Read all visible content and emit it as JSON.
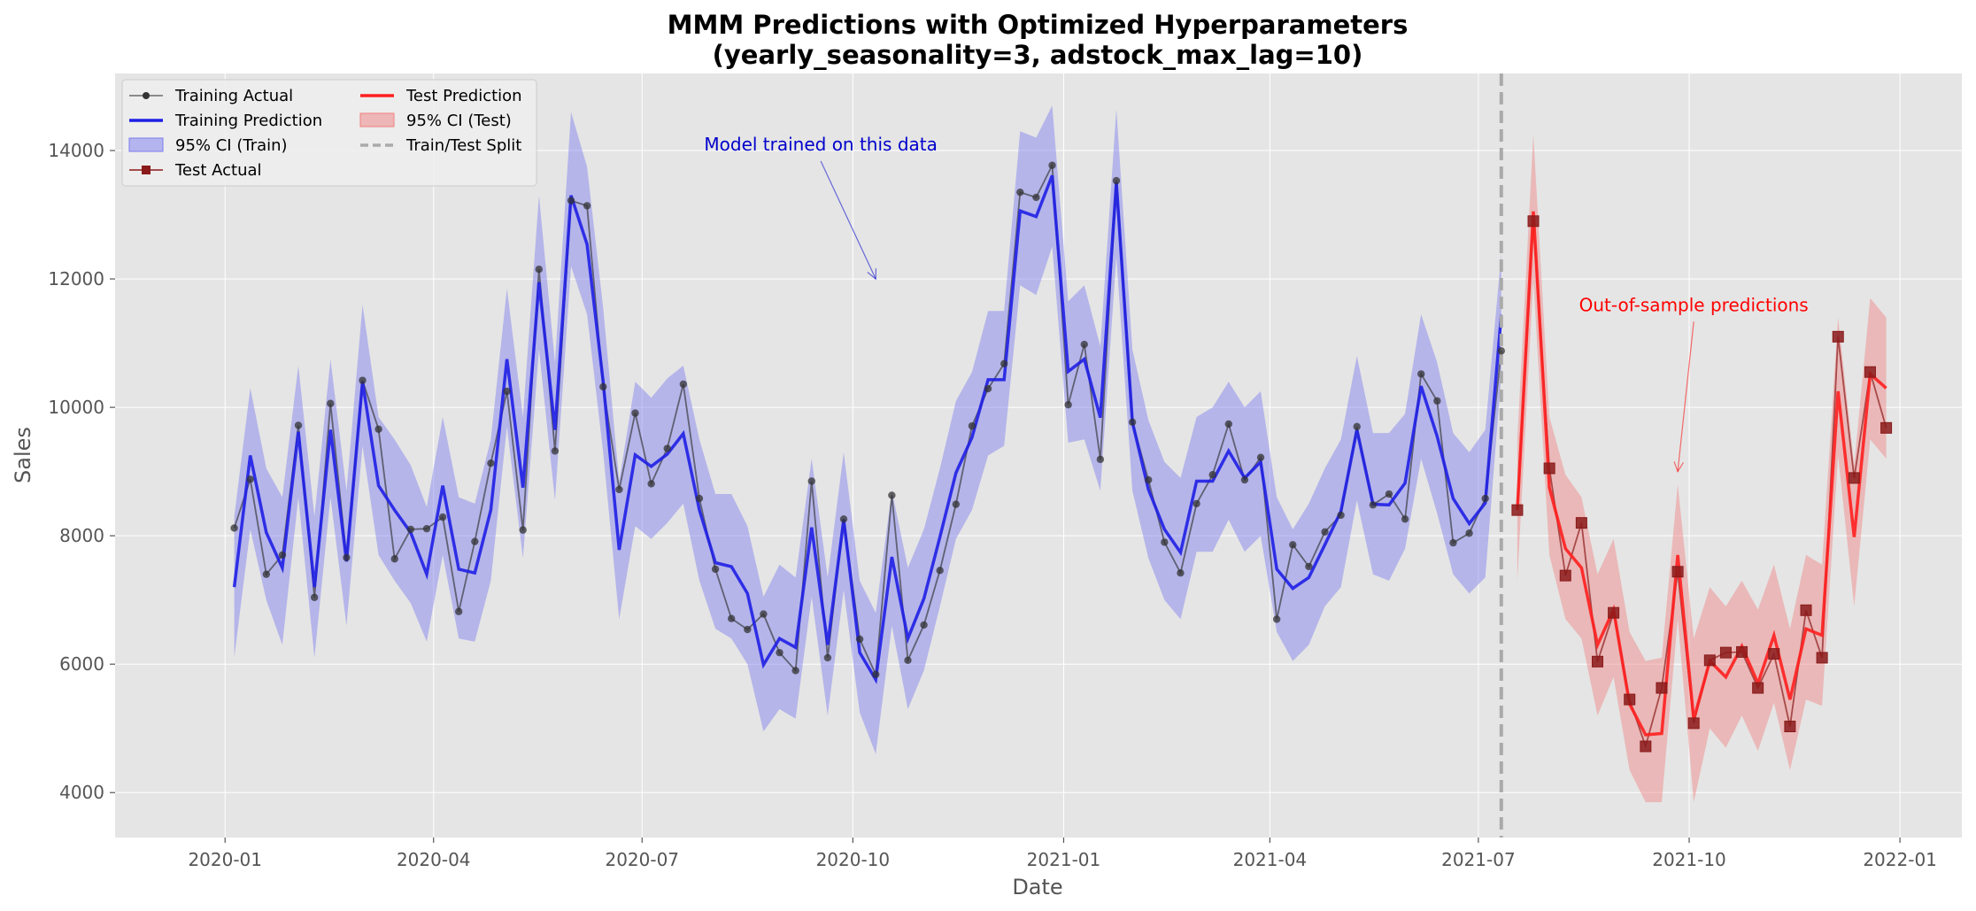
{
  "chart_data": {
    "type": "line",
    "title": "MMM Predictions with Optimized Hyperparameters",
    "subtitle": "(yearly_seasonality=3, adstock_max_lag=10)",
    "xlabel": "Date",
    "ylabel": "Sales",
    "ylim": [
      3300,
      15200
    ],
    "xlim": [
      "2019-11-14",
      "2022-01-28"
    ],
    "grid": true,
    "legend_placement": "top-left",
    "x_ticks": [
      "2020-01",
      "2020-04",
      "2020-07",
      "2020-10",
      "2021-01",
      "2021-04",
      "2021-07",
      "2021-10",
      "2022-01"
    ],
    "y_ticks": [
      4000,
      6000,
      8000,
      10000,
      12000,
      14000
    ],
    "split_date": "2021-07-11",
    "colors": {
      "train_actual": "#333333",
      "train_pred": "#1f1fe6",
      "train_ci": "#7b7bf0",
      "test_actual": "#8b1a1a",
      "test_pred": "#ff1f1f",
      "test_ci": "#f08080",
      "split": "#aaaaaa",
      "plot_bg": "#e5e5e5",
      "grid": "#ffffff"
    },
    "legend": [
      {
        "key": "train_actual",
        "label": "Training Actual"
      },
      {
        "key": "train_pred",
        "label": "Training Prediction"
      },
      {
        "key": "train_ci",
        "label": "95% CI (Train)"
      },
      {
        "key": "test_actual",
        "label": "Test Actual"
      },
      {
        "key": "test_pred",
        "label": "Test Prediction"
      },
      {
        "key": "test_ci",
        "label": "95% CI (Test)"
      },
      {
        "key": "split",
        "label": "Train/Test Split"
      }
    ],
    "annotations": [
      {
        "text": "Model trained on this data",
        "text_at": [
          "2020-09-17",
          14000
        ],
        "arrow_to": [
          "2020-10-11",
          12000
        ],
        "color": "#0000cc"
      },
      {
        "text": "Out-of-sample predictions",
        "text_at": [
          "2021-10-03",
          11500
        ],
        "arrow_to": [
          "2021-09-26",
          9000
        ],
        "color": "#ff0000"
      }
    ],
    "train": {
      "dates": [
        "2020-01-05",
        "2020-01-12",
        "2020-01-19",
        "2020-01-26",
        "2020-02-02",
        "2020-02-09",
        "2020-02-16",
        "2020-02-23",
        "2020-03-01",
        "2020-03-08",
        "2020-03-15",
        "2020-03-22",
        "2020-03-29",
        "2020-04-05",
        "2020-04-12",
        "2020-04-19",
        "2020-04-26",
        "2020-05-03",
        "2020-05-10",
        "2020-05-17",
        "2020-05-24",
        "2020-05-31",
        "2020-06-07",
        "2020-06-14",
        "2020-06-21",
        "2020-06-28",
        "2020-07-05",
        "2020-07-12",
        "2020-07-19",
        "2020-07-26",
        "2020-08-02",
        "2020-08-09",
        "2020-08-16",
        "2020-08-23",
        "2020-08-30",
        "2020-09-06",
        "2020-09-13",
        "2020-09-20",
        "2020-09-27",
        "2020-10-04",
        "2020-10-11",
        "2020-10-18",
        "2020-10-25",
        "2020-11-01",
        "2020-11-08",
        "2020-11-15",
        "2020-11-22",
        "2020-11-29",
        "2020-12-06",
        "2020-12-13",
        "2020-12-20",
        "2020-12-27",
        "2021-01-03",
        "2021-01-10",
        "2021-01-17",
        "2021-01-24",
        "2021-01-31",
        "2021-02-07",
        "2021-02-14",
        "2021-02-21",
        "2021-02-28",
        "2021-03-07",
        "2021-03-14",
        "2021-03-21",
        "2021-03-28",
        "2021-04-04",
        "2021-04-11",
        "2021-04-18",
        "2021-04-25",
        "2021-05-02",
        "2021-05-09",
        "2021-05-16",
        "2021-05-23",
        "2021-05-30",
        "2021-06-06",
        "2021-06-13",
        "2021-06-20",
        "2021-06-27",
        "2021-07-04",
        "2021-07-11"
      ],
      "actual": [
        8120,
        8880,
        7400,
        7700,
        9720,
        7040,
        10060,
        7660,
        10420,
        9660,
        7640,
        8100,
        8110,
        8290,
        6820,
        7910,
        9130,
        10250,
        8090,
        12150,
        9320,
        13220,
        13140,
        10320,
        8720,
        9910,
        8810,
        9360,
        10360,
        8580,
        7480,
        6710,
        6540,
        6780,
        6180,
        5900,
        8850,
        6100,
        8260,
        6390,
        5840,
        8630,
        6060,
        6610,
        7460,
        8490,
        9710,
        10290,
        10680,
        13350,
        13270,
        13770,
        10040,
        10980,
        9190,
        13530,
        9770,
        8870,
        7900,
        7420,
        8500,
        8950,
        9740,
        8870,
        9220,
        6700,
        7860,
        7520,
        8060,
        8320,
        9700,
        8480,
        8650,
        8260,
        10520,
        10100,
        7890,
        8040,
        8580,
        10880
      ],
      "pred": [
        7200,
        9250,
        8050,
        7500,
        9620,
        7200,
        9650,
        7600,
        10400,
        8780,
        8400,
        8050,
        7400,
        8780,
        7480,
        7420,
        8400,
        10750,
        8750,
        11950,
        9650,
        13300,
        12540,
        10400,
        7780,
        9260,
        9080,
        9270,
        9590,
        8400,
        7580,
        7520,
        7100,
        5990,
        6400,
        6260,
        8130,
        6300,
        8250,
        6180,
        5760,
        7670,
        6400,
        7020,
        7980,
        8980,
        9530,
        10430,
        10430,
        13060,
        12970,
        13610,
        10560,
        10750,
        9840,
        13500,
        9770,
        8720,
        8100,
        7740,
        8850,
        8850,
        9320,
        8900,
        9150,
        7480,
        7180,
        7350,
        7860,
        8380,
        9650,
        8490,
        8480,
        8820,
        10330,
        9550,
        8580,
        8190,
        8510,
        11440
      ],
      "ci_lower": [
        6100,
        8100,
        7000,
        6300,
        8600,
        6100,
        8600,
        6600,
        9400,
        7700,
        7300,
        6950,
        6350,
        7700,
        6400,
        6350,
        7300,
        9700,
        7650,
        10900,
        8550,
        12200,
        11450,
        9300,
        6700,
        8150,
        7950,
        8200,
        8500,
        7300,
        6550,
        6400,
        6000,
        4950,
        5300,
        5150,
        7050,
        5200,
        7150,
        5250,
        4600,
        6600,
        5300,
        5900,
        6900,
        7950,
        8400,
        9250,
        9400,
        11900,
        11750,
        12500,
        9450,
        9500,
        8700,
        12350,
        8700,
        7650,
        7000,
        6700,
        7750,
        7750,
        8250,
        7750,
        8000,
        6500,
        6050,
        6300,
        6900,
        7200,
        8550,
        7400,
        7300,
        7800,
        9200,
        8350,
        7400,
        7100,
        7350,
        10500
      ],
      "ci_upper": [
        8300,
        10300,
        9050,
        8600,
        10650,
        8300,
        10750,
        8700,
        11600,
        9850,
        9500,
        9100,
        8450,
        9850,
        8600,
        8500,
        9500,
        11850,
        9850,
        13300,
        10700,
        14600,
        13750,
        11550,
        8850,
        10400,
        10150,
        10450,
        10650,
        9500,
        8650,
        8650,
        8150,
        7050,
        7550,
        7350,
        9200,
        7350,
        9300,
        7300,
        6800,
        8700,
        7500,
        8100,
        9050,
        10100,
        10550,
        11500,
        11500,
        14300,
        14200,
        14700,
        11650,
        11900,
        10950,
        14650,
        10900,
        9800,
        9150,
        8900,
        9850,
        10000,
        10400,
        10000,
        10250,
        8600,
        8100,
        8500,
        9050,
        9500,
        10800,
        9600,
        9600,
        9900,
        11450,
        10700,
        9600,
        9300,
        9650,
        12400
      ]
    },
    "test": {
      "dates": [
        "2021-07-18",
        "2021-07-25",
        "2021-08-01",
        "2021-08-08",
        "2021-08-15",
        "2021-08-22",
        "2021-08-29",
        "2021-09-05",
        "2021-09-12",
        "2021-09-19",
        "2021-09-26",
        "2021-10-03",
        "2021-10-10",
        "2021-10-17",
        "2021-10-24",
        "2021-10-31",
        "2021-11-07",
        "2021-11-14",
        "2021-11-21",
        "2021-11-28",
        "2021-12-05",
        "2021-12-12",
        "2021-12-19",
        "2021-12-26"
      ],
      "actual": [
        8400,
        12900,
        9050,
        7380,
        8200,
        6040,
        6800,
        5450,
        4720,
        5630,
        7440,
        5080,
        6060,
        6180,
        6190,
        5630,
        6160,
        5030,
        6840,
        6100,
        11100,
        8900,
        10550,
        9680
      ],
      "pred": [
        8400,
        13050,
        8750,
        7800,
        7500,
        6300,
        6850,
        5380,
        4900,
        4920,
        7700,
        5140,
        6050,
        5800,
        6280,
        5700,
        6450,
        5450,
        6550,
        6450,
        10250,
        7980,
        10520,
        10300
      ],
      "ci_lower": [
        7300,
        12000,
        7700,
        6700,
        6400,
        5200,
        5800,
        4350,
        3850,
        3850,
        6700,
        3850,
        5000,
        4700,
        5200,
        4650,
        5400,
        4350,
        5450,
        5350,
        9250,
        6900,
        9500,
        9200
      ],
      "ci_upper": [
        9500,
        14250,
        9850,
        8950,
        8600,
        7400,
        7950,
        6500,
        6050,
        6100,
        8800,
        6400,
        7200,
        6900,
        7300,
        6850,
        7550,
        6550,
        7700,
        7550,
        11400,
        9100,
        11700,
        11400
      ]
    }
  }
}
